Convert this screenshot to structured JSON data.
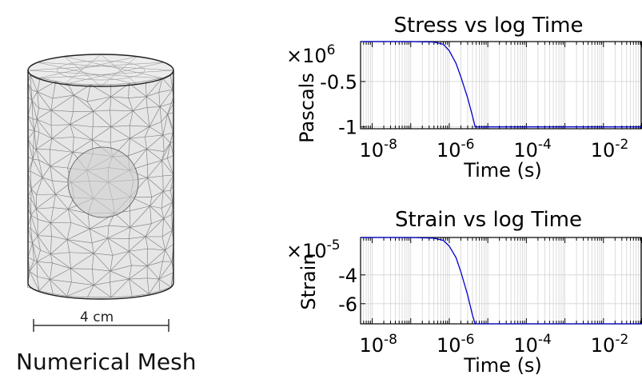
{
  "mesh": {
    "caption": "Numerical Mesh",
    "scale_label": "4 cm"
  },
  "chart_data": [
    {
      "type": "line",
      "title": "Stress vs log Time",
      "xlabel": "Time (s)",
      "ylabel": "Pascals",
      "y_multiplier_label": "×10^6",
      "x_scale": "log",
      "xlim": [
        5e-09,
        0.1
      ],
      "ylim": [
        -1.02,
        -0.06
      ],
      "x_ticks": [
        1e-08,
        1e-06,
        0.0001,
        0.01
      ],
      "x_tick_labels": [
        {
          "base": "10",
          "exp": "-8"
        },
        {
          "base": "10",
          "exp": "-6"
        },
        {
          "base": "10",
          "exp": "-4"
        },
        {
          "base": "10",
          "exp": "-2"
        }
      ],
      "y_ticks": [
        -0.5,
        -1
      ],
      "y_tick_labels": [
        "-0.5",
        "-1"
      ],
      "grid": true,
      "line_color": "#0000cc",
      "series": [
        {
          "x": [
            5e-09,
            1e-07,
            4e-07,
            7e-07,
            1e-06,
            1.5e-06,
            2e-06,
            3e-06,
            4e-06,
            4.7e-06,
            5e-06,
            1e-05,
            0.0001,
            0.001,
            0.01,
            0.1
          ],
          "y": [
            -0.06,
            -0.06,
            -0.065,
            -0.09,
            -0.16,
            -0.3,
            -0.45,
            -0.68,
            -0.88,
            -1.0,
            -1.0,
            -1.0,
            -1.0,
            -1.0,
            -1.0,
            -1.0
          ]
        }
      ]
    },
    {
      "type": "line",
      "title": "Strain vs log Time",
      "xlabel": "Time (s)",
      "ylabel": "Strain",
      "y_multiplier_label": "×10^-5",
      "x_scale": "log",
      "xlim": [
        5e-09,
        0.1
      ],
      "ylim": [
        -7.4,
        -1.4
      ],
      "x_ticks": [
        1e-08,
        1e-06,
        0.0001,
        0.01
      ],
      "x_tick_labels": [
        {
          "base": "10",
          "exp": "-8"
        },
        {
          "base": "10",
          "exp": "-6"
        },
        {
          "base": "10",
          "exp": "-4"
        },
        {
          "base": "10",
          "exp": "-2"
        }
      ],
      "y_ticks": [
        -4,
        -6
      ],
      "y_tick_labels": [
        "-4",
        "-6"
      ],
      "grid": true,
      "line_color": "#0000cc",
      "series": [
        {
          "x": [
            5e-09,
            1e-07,
            4e-07,
            7e-07,
            1e-06,
            1.5e-06,
            2e-06,
            3e-06,
            4e-06,
            4.7e-06,
            5e-06,
            1e-05,
            0.0001,
            0.001,
            0.01,
            0.1
          ],
          "y": [
            -1.4,
            -1.4,
            -1.45,
            -1.6,
            -2.0,
            -2.8,
            -3.8,
            -5.4,
            -6.8,
            -7.4,
            -7.4,
            -7.4,
            -7.4,
            -7.4,
            -7.4,
            -7.4
          ]
        }
      ]
    }
  ]
}
